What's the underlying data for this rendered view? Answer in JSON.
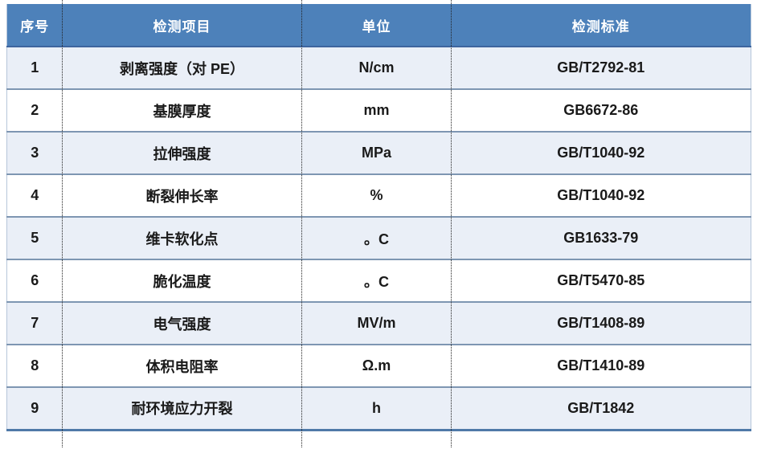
{
  "table": {
    "columns": [
      "序号",
      "检测项目",
      "单位",
      "检测标准"
    ],
    "rows": [
      {
        "no": "1",
        "item": "剥离强度（对 PE）",
        "unit": "N/cm",
        "standard": "GB/T2792-81"
      },
      {
        "no": "2",
        "item": "基膜厚度",
        "unit": "mm",
        "standard": "GB6672-86"
      },
      {
        "no": "3",
        "item": "拉伸强度",
        "unit": "MPa",
        "standard": "GB/T1040-92"
      },
      {
        "no": "4",
        "item": "断裂伸长率",
        "unit": "%",
        "standard": "GB/T1040-92"
      },
      {
        "no": "5",
        "item": "维卡软化点",
        "unit": "。C",
        "standard": "GB1633-79"
      },
      {
        "no": "6",
        "item": "脆化温度",
        "unit": "。C",
        "standard": "GB/T5470-85"
      },
      {
        "no": "7",
        "item": "电气强度",
        "unit": "MV/m",
        "standard": "GB/T1408-89"
      },
      {
        "no": "8",
        "item": "体积电阻率",
        "unit": "Ω.m",
        "standard": "GB/T1410-89"
      },
      {
        "no": "9",
        "item": "耐环境应力开裂",
        "unit": "h",
        "standard": "GB/T1842"
      }
    ]
  },
  "colors": {
    "header_bg": "#4d81ba",
    "header_text": "#ffffff",
    "row_alt_bg": "#eaeff7",
    "row_bg": "#ffffff",
    "row_border": "#7e96b2",
    "header_bottom_border": "#3e659e",
    "table_bottom_border": "#4f79a8",
    "body_text": "#1a1a1a",
    "column_separator": "#222222"
  }
}
